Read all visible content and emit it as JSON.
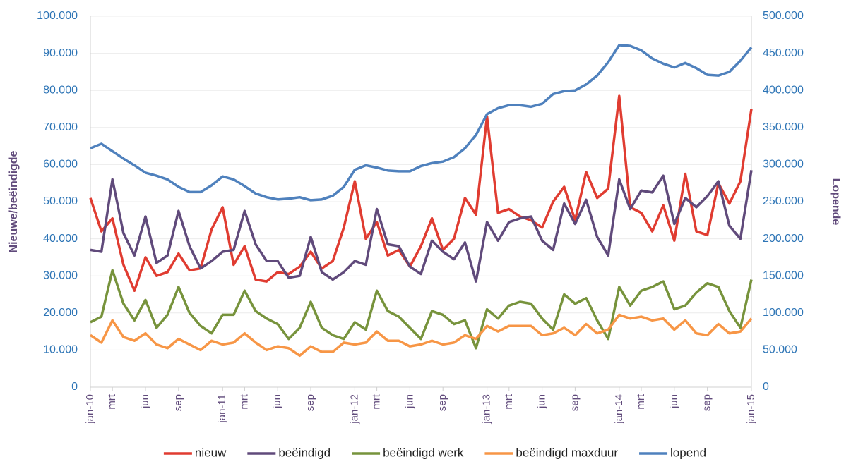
{
  "chart_data": {
    "type": "line",
    "y_label": "Nieuwe/beëindigde",
    "y2_label": "Lopende",
    "categories": [
      "jan-10",
      null,
      "mrt",
      null,
      null,
      "jun",
      null,
      null,
      "sep",
      null,
      null,
      null,
      "jan-11",
      null,
      "mrt",
      null,
      null,
      "jun",
      null,
      null,
      "sep",
      null,
      null,
      null,
      "jan-12",
      null,
      "mrt",
      null,
      null,
      "jun",
      null,
      null,
      "sep",
      null,
      null,
      null,
      "jan-13",
      null,
      "mrt",
      null,
      null,
      "jun",
      null,
      null,
      "sep",
      null,
      null,
      null,
      "jan-14",
      null,
      "mrt",
      null,
      null,
      "jun",
      null,
      null,
      "sep",
      null,
      null,
      null,
      "jan-15"
    ],
    "ylim": [
      0,
      100000
    ],
    "yticks": [
      0,
      {
        "value": 10000,
        "label": "10.000"
      },
      {
        "value": 20000,
        "label": "20.000"
      },
      {
        "value": 30000,
        "label": "30.000"
      },
      {
        "value": 40000,
        "label": "40.000"
      },
      {
        "value": 50000,
        "label": "50.000"
      },
      {
        "value": 60000,
        "label": "60.000"
      },
      {
        "value": 70000,
        "label": "70.000"
      },
      {
        "value": 80000,
        "label": "80.000"
      },
      {
        "value": 90000,
        "label": "90.000"
      },
      {
        "value": 100000,
        "label": "100.000"
      }
    ],
    "y2lim": [
      0,
      500000
    ],
    "y2ticks": [
      0,
      {
        "value": 50000,
        "label": "50.000"
      },
      {
        "value": 100000,
        "label": "100.000"
      },
      {
        "value": 150000,
        "label": "150.000"
      },
      {
        "value": 200000,
        "label": "200.000"
      },
      {
        "value": 250000,
        "label": "250.000"
      },
      {
        "value": 300000,
        "label": "300.000"
      },
      {
        "value": 350000,
        "label": "350.000"
      },
      {
        "value": 400000,
        "label": "400.000"
      },
      {
        "value": 450000,
        "label": "450.000"
      },
      {
        "value": 500000,
        "label": "500.000"
      }
    ],
    "grid": true,
    "legend": "bottom",
    "series": [
      {
        "name": "nieuw",
        "color": "#e03c31",
        "values": [
          51000,
          42000,
          45500,
          33000,
          26000,
          35000,
          30000,
          31000,
          36000,
          31500,
          32000,
          42500,
          48500,
          33000,
          38000,
          29000,
          28500,
          31000,
          30500,
          32500,
          36500,
          32000,
          34000,
          43000,
          55500,
          40000,
          44500,
          35500,
          37000,
          32500,
          38000,
          45500,
          37000,
          40000,
          51000,
          46500,
          73000,
          47000,
          48000,
          46000,
          45000,
          43000,
          50000,
          54000,
          45000,
          58000,
          51000,
          53500,
          78500,
          48500,
          47000,
          42000,
          49000,
          39500,
          57500,
          42000,
          41000,
          55000,
          49500,
          55500,
          75000
        ]
      },
      {
        "name": "beëindigd",
        "color": "#604a7b",
        "values": [
          37000,
          36500,
          56000,
          41500,
          35500,
          46000,
          33500,
          35500,
          47500,
          38000,
          32000,
          34000,
          36500,
          37000,
          47500,
          38500,
          34000,
          34000,
          29500,
          30000,
          40500,
          31000,
          29000,
          31000,
          34000,
          33000,
          48000,
          38500,
          38000,
          32500,
          30500,
          39500,
          36500,
          34500,
          39000,
          28500,
          44500,
          39500,
          44500,
          45500,
          46000,
          39500,
          37000,
          49500,
          44000,
          50500,
          40500,
          35500,
          56000,
          48000,
          53000,
          52500,
          57000,
          44000,
          51000,
          48500,
          51500,
          55500,
          43500,
          40000,
          58500
        ]
      },
      {
        "name": "beëindigd werk",
        "color": "#77933c",
        "values": [
          17500,
          19000,
          31500,
          22500,
          18000,
          23500,
          16000,
          19500,
          27000,
          20000,
          16500,
          14500,
          19500,
          19500,
          26000,
          20500,
          18500,
          17000,
          13000,
          16000,
          23000,
          16000,
          14000,
          13000,
          17500,
          15500,
          26000,
          20500,
          19000,
          16000,
          13000,
          20500,
          19500,
          17000,
          18000,
          10500,
          21000,
          18500,
          22000,
          23000,
          22500,
          18500,
          15500,
          25000,
          22500,
          24000,
          18000,
          13000,
          27000,
          22000,
          26000,
          27000,
          28500,
          21000,
          22000,
          25500,
          28000,
          27000,
          20500,
          16000,
          29000
        ]
      },
      {
        "name": "beëindigd maxduur",
        "color": "#f79646",
        "values": [
          14000,
          12000,
          18000,
          13500,
          12500,
          14500,
          11500,
          10500,
          13000,
          11500,
          10000,
          12500,
          11500,
          12000,
          14500,
          12000,
          10000,
          11000,
          10500,
          8500,
          11000,
          9500,
          9500,
          12000,
          11500,
          12000,
          15000,
          12500,
          12500,
          11000,
          11500,
          12500,
          11500,
          12000,
          14000,
          13000,
          16500,
          15000,
          16500,
          16500,
          16500,
          14000,
          14500,
          16000,
          14000,
          17000,
          14500,
          15500,
          19500,
          18500,
          19000,
          18000,
          18500,
          15500,
          18000,
          14500,
          14000,
          17000,
          14500,
          15000,
          18500
        ]
      },
      {
        "name": "lopend",
        "color": "#4f81bd",
        "axis": "y2",
        "values": [
          322000,
          328000,
          318000,
          308000,
          299000,
          289000,
          285000,
          280000,
          270000,
          263000,
          263000,
          272000,
          284000,
          280000,
          271000,
          261000,
          256000,
          253000,
          254000,
          256000,
          252000,
          253000,
          258000,
          270000,
          293000,
          299000,
          296000,
          292000,
          291000,
          291000,
          298000,
          302000,
          304000,
          310000,
          322000,
          340000,
          368000,
          376000,
          380000,
          380000,
          378000,
          382000,
          395000,
          399000,
          400000,
          408000,
          420000,
          438000,
          461000,
          460000,
          454000,
          443000,
          436000,
          431000,
          437000,
          430000,
          421000,
          420000,
          425000,
          440000,
          458000
        ]
      }
    ]
  }
}
